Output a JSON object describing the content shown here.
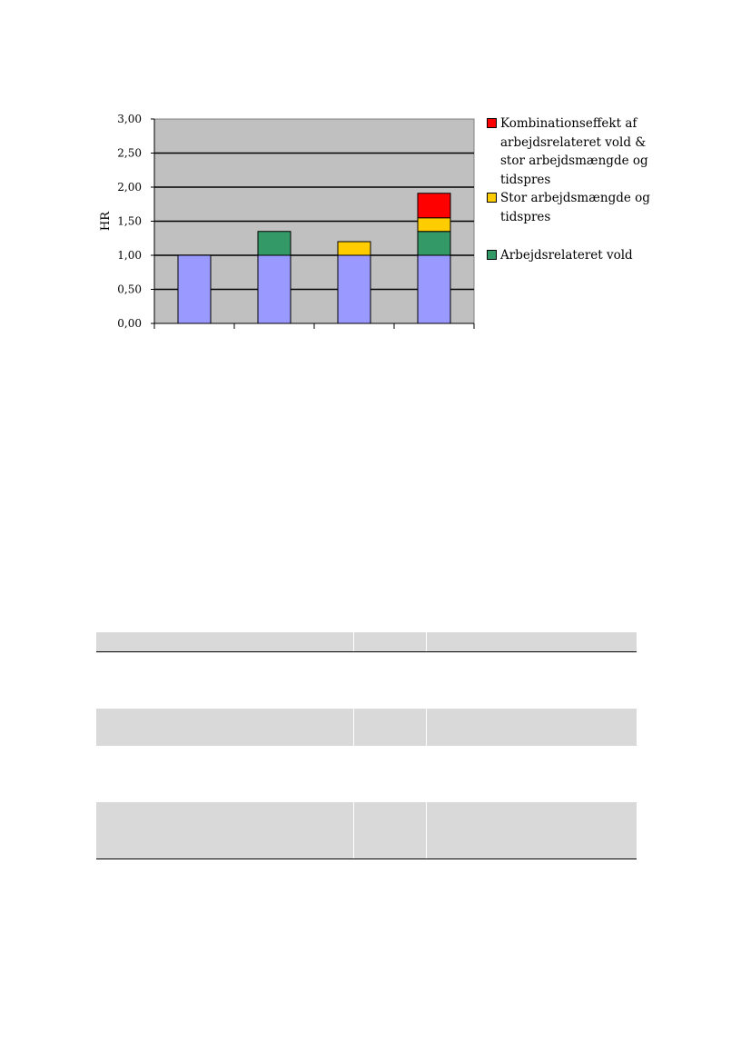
{
  "chart_data": {
    "type": "bar",
    "stacked": true,
    "title": "",
    "xlabel": "",
    "ylabel": "HR",
    "ylim": [
      0,
      3
    ],
    "yticks": [
      "0,00",
      "0,50",
      "1,00",
      "1,50",
      "2,00",
      "2,50",
      "3,00"
    ],
    "ytick_values": [
      0,
      0.5,
      1.0,
      1.5,
      2.0,
      2.5,
      3.0
    ],
    "grid": true,
    "legend_position": "right",
    "categories": [
      "",
      "",
      "",
      ""
    ],
    "base": {
      "values": [
        1.0,
        1.0,
        1.0,
        1.0
      ],
      "color": "#9999ff"
    },
    "series": [
      {
        "name": "Arbejdsrelateret vold",
        "color": "#339966",
        "values": [
          0,
          0.35,
          0,
          0.35
        ]
      },
      {
        "name": "Stor arbejdsmængde og tidspres",
        "color": "#ffcc00",
        "values": [
          0,
          0,
          0.2,
          0.2
        ]
      },
      {
        "name": "Kombinationseffekt af arbejdsrelateret vold & stor arbejdsmængde og tidspres",
        "color": "#ff0000",
        "values": [
          0,
          0,
          0,
          0.36
        ]
      }
    ],
    "plot_background": "#c0c0c0"
  },
  "legend": {
    "items": [
      {
        "label": "Kombinationseffekt af arbejdsrelateret vold & stor arbejdsmængde og tidspres",
        "color": "#ff0000"
      },
      {
        "label": "Stor arbejdsmængde og tidspres",
        "color": "#ffcc00"
      },
      {
        "label": "Arbejdsrelateret vold",
        "color": "#339966"
      }
    ]
  },
  "table": {
    "rows": [
      "header",
      "white",
      "gray",
      "white",
      "gray"
    ]
  }
}
